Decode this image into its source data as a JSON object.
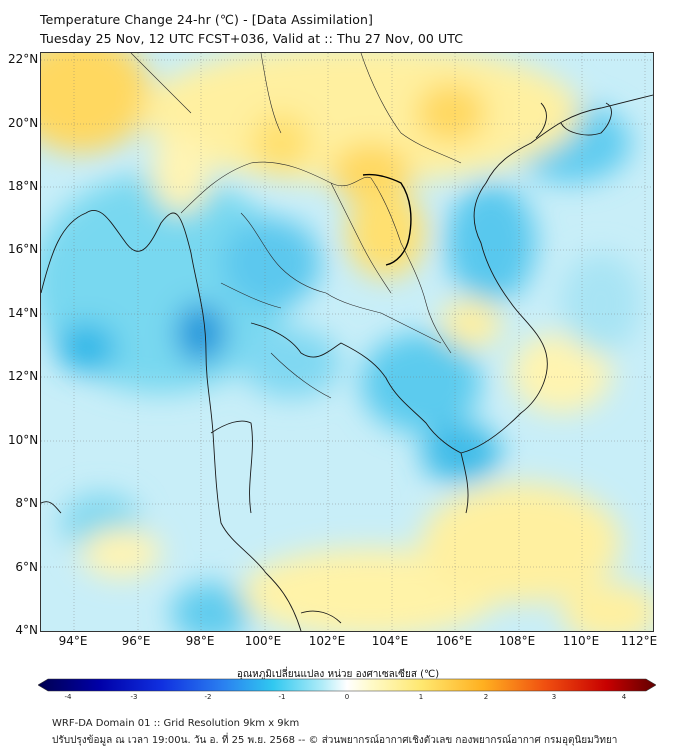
{
  "title": {
    "line1": "Temperature Change 24-hr (℃) - [Data Assimilation]",
    "line2": "Tuesday 25 Nov, 12 UTC FCST+036, Valid at :: Thu 27 Nov, 00 UTC"
  },
  "map": {
    "lat_labels": [
      "22°N",
      "20°N",
      "18°N",
      "16°N",
      "14°N",
      "12°N",
      "10°N",
      "8°N",
      "6°N",
      "4°N"
    ],
    "lon_labels": [
      "94°E",
      "96°E",
      "98°E",
      "100°E",
      "102°E",
      "104°E",
      "106°E",
      "108°E",
      "110°E",
      "112°E"
    ],
    "lat_range": [
      4,
      22
    ],
    "lon_range": [
      93,
      112.3
    ]
  },
  "colorbar": {
    "label": "อุณหภูมิเปลี่ยนแปลง หน่วย องศาเซลเซียส (℃)",
    "ticks": [
      "-4",
      "-3",
      "-2",
      "-1",
      "0",
      "1",
      "2",
      "3",
      "4"
    ],
    "range": [
      -4,
      4
    ],
    "colors": [
      "#000060",
      "#0000b0",
      "#1030e0",
      "#2a80f0",
      "#30c8f0",
      "#a8ecf8",
      "#ffffff",
      "#fff8b0",
      "#ffe060",
      "#ffb020",
      "#f06010",
      "#d00000",
      "#700000"
    ]
  },
  "footer": {
    "line1": "WRF-DA Domain 01 :: Grid Resolution 9km x 9km",
    "line2": "ปรับปรุงข้อมูล ณ เวลา 19:00น. วัน อ. ที่ 25 พ.ย. 2568 -- © ส่วนพยากรณ์อากาศเชิงตัวเลข กองพยากรณ์อากาศ กรมอุตุนิยมวิทยา"
  }
}
